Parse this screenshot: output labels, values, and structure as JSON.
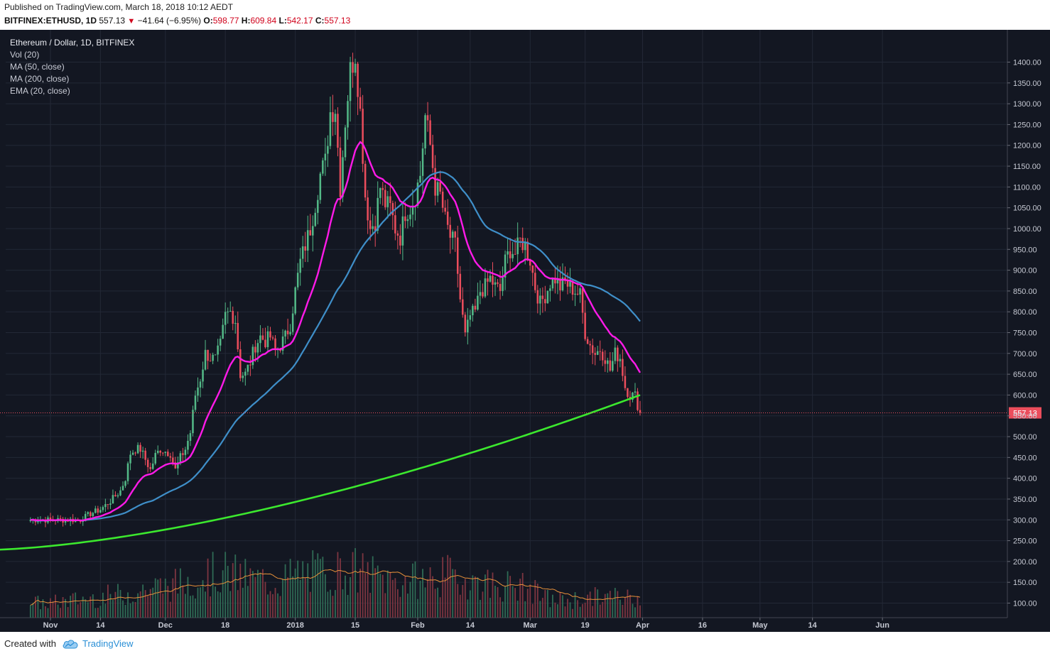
{
  "header": {
    "published": "Published on TradingView.com, March 18, 2018 10:12 AEDT",
    "symbol": "BITFINEX:ETHUSD, 1D",
    "last": "557.13",
    "change": "−41.64 (−6.95%)",
    "open_label": "O:",
    "open": "598.77",
    "high_label": "H:",
    "high": "609.84",
    "low_label": "L:",
    "low": "542.17",
    "close_label": "C:",
    "close": "557.13"
  },
  "footer": {
    "created_with": "Created with",
    "brand": "TradingView"
  },
  "colors": {
    "background": "#131722",
    "up": "#53b987",
    "down": "#eb4d5c",
    "ma50": "#3f8fc9",
    "ma200": "#3ce82e",
    "ema20": "#ff1ae8",
    "vol_ma": "#e8913a"
  },
  "chart_data": {
    "type": "candlestick",
    "title": "Ethereum / Dollar, 1D, BITFINEX",
    "indicators": [
      "Vol (20)",
      "MA (50, close)",
      "MA (200, close)",
      "EMA (20, close)"
    ],
    "price_axis": {
      "ylim": [
        65,
        1435
      ],
      "ticks": [
        100,
        150,
        200,
        250,
        300,
        350,
        400,
        450,
        500,
        550,
        600,
        650,
        700,
        750,
        800,
        850,
        900,
        950,
        1000,
        1050,
        1100,
        1150,
        1200,
        1250,
        1300,
        1350,
        1400
      ],
      "tick_labels": [
        "100.00",
        "150.00",
        "200.00",
        "250.00",
        "300.00",
        "350.00",
        "400.00",
        "450.00",
        "500.00",
        "550.00",
        "600.00",
        "650.00",
        "700.00",
        "750.00",
        "800.00",
        "850.00",
        "900.00",
        "950.00",
        "1000.00",
        "1050.00",
        "1100.00",
        "1150.00",
        "1200.00",
        "1250.00",
        "1300.00",
        "1350.00",
        "1400.00"
      ],
      "last_price_label": "557.13",
      "last_price": 557.13
    },
    "time_axis": {
      "day_range": [
        -24,
        206
      ],
      "ticks": [
        {
          "day": 0,
          "label": "Nov"
        },
        {
          "day": 20,
          "label": "14"
        },
        {
          "day": 46,
          "label": "Dec"
        },
        {
          "day": 70,
          "label": "18"
        },
        {
          "day": 98,
          "label": "2018"
        },
        {
          "day": 122,
          "label": "15"
        },
        {
          "day": 147,
          "label": "Feb"
        },
        {
          "day": 168,
          "label": "14"
        },
        {
          "day": 192,
          "label": "Mar"
        },
        {
          "day": 214,
          "label": "19"
        },
        {
          "day": 237,
          "label": "Apr"
        },
        {
          "day": 261,
          "label": "16"
        },
        {
          "day": 284,
          "label": "May"
        },
        {
          "day": 305,
          "label": "14"
        },
        {
          "day": 333,
          "label": "Jun"
        }
      ]
    },
    "close_keypoints": [
      [
        0,
        300
      ],
      [
        8,
        300
      ],
      [
        12,
        300
      ],
      [
        16,
        315
      ],
      [
        20,
        325
      ],
      [
        24,
        345
      ],
      [
        28,
        370
      ],
      [
        30,
        400
      ],
      [
        32,
        460
      ],
      [
        34,
        470
      ],
      [
        36,
        470
      ],
      [
        38,
        445
      ],
      [
        40,
        420
      ],
      [
        42,
        455
      ],
      [
        44,
        470
      ],
      [
        46,
        465
      ],
      [
        48,
        460
      ],
      [
        50,
        420
      ],
      [
        52,
        450
      ],
      [
        54,
        470
      ],
      [
        56,
        510
      ],
      [
        58,
        600
      ],
      [
        60,
        640
      ],
      [
        62,
        700
      ],
      [
        64,
        690
      ],
      [
        66,
        685
      ],
      [
        68,
        720
      ],
      [
        70,
        790
      ],
      [
        72,
        800
      ],
      [
        74,
        780
      ],
      [
        76,
        650
      ],
      [
        78,
        650
      ],
      [
        80,
        680
      ],
      [
        82,
        720
      ],
      [
        84,
        740
      ],
      [
        86,
        730
      ],
      [
        88,
        740
      ],
      [
        90,
        705
      ],
      [
        92,
        720
      ],
      [
        94,
        740
      ],
      [
        96,
        770
      ],
      [
        98,
        850
      ],
      [
        100,
        920
      ],
      [
        102,
        960
      ],
      [
        104,
        1000
      ],
      [
        106,
        1060
      ],
      [
        108,
        1130
      ],
      [
        110,
        1160
      ],
      [
        112,
        1280
      ],
      [
        114,
        1290
      ],
      [
        116,
        1100
      ],
      [
        118,
        1260
      ],
      [
        120,
        1380
      ],
      [
        122,
        1420
      ],
      [
        124,
        1280
      ],
      [
        126,
        1080
      ],
      [
        128,
        1000
      ],
      [
        130,
        1020
      ],
      [
        132,
        1100
      ],
      [
        134,
        1060
      ],
      [
        136,
        1050
      ],
      [
        138,
        1000
      ],
      [
        140,
        980
      ],
      [
        142,
        1040
      ],
      [
        144,
        1050
      ],
      [
        146,
        1080
      ],
      [
        148,
        1130
      ],
      [
        150,
        1270
      ],
      [
        152,
        1200
      ],
      [
        154,
        1100
      ],
      [
        156,
        1080
      ],
      [
        158,
        1020
      ],
      [
        160,
        980
      ],
      [
        162,
        960
      ],
      [
        164,
        830
      ],
      [
        166,
        740
      ],
      [
        168,
        790
      ],
      [
        170,
        800
      ],
      [
        172,
        850
      ],
      [
        174,
        860
      ],
      [
        176,
        880
      ],
      [
        178,
        860
      ],
      [
        180,
        850
      ],
      [
        182,
        920
      ],
      [
        184,
        950
      ],
      [
        186,
        940
      ],
      [
        188,
        970
      ],
      [
        190,
        960
      ],
      [
        192,
        925
      ],
      [
        194,
        860
      ],
      [
        196,
        820
      ],
      [
        198,
        840
      ],
      [
        200,
        870
      ],
      [
        202,
        880
      ],
      [
        204,
        860
      ],
      [
        206,
        870
      ],
      [
        208,
        860
      ],
      [
        210,
        850
      ],
      [
        212,
        840
      ],
      [
        214,
        750
      ],
      [
        216,
        720
      ],
      [
        218,
        700
      ],
      [
        220,
        710
      ],
      [
        222,
        690
      ],
      [
        224,
        660
      ],
      [
        226,
        700
      ],
      [
        228,
        690
      ],
      [
        230,
        620
      ],
      [
        232,
        600
      ],
      [
        234,
        598
      ],
      [
        236,
        557
      ]
    ],
    "volume_keypoints": [
      [
        0,
        0.1
      ],
      [
        10,
        0.12
      ],
      [
        20,
        0.14
      ],
      [
        30,
        0.16
      ],
      [
        40,
        0.2
      ],
      [
        50,
        0.22
      ],
      [
        60,
        0.28
      ],
      [
        70,
        0.3
      ],
      [
        80,
        0.26
      ],
      [
        90,
        0.24
      ],
      [
        100,
        0.3
      ],
      [
        110,
        0.3
      ],
      [
        120,
        0.32
      ],
      [
        130,
        0.28
      ],
      [
        140,
        0.24
      ],
      [
        150,
        0.26
      ],
      [
        160,
        0.28
      ],
      [
        170,
        0.24
      ],
      [
        180,
        0.22
      ],
      [
        190,
        0.2
      ],
      [
        200,
        0.12
      ],
      [
        210,
        0.12
      ],
      [
        220,
        0.14
      ],
      [
        230,
        0.14
      ],
      [
        236,
        0.14
      ]
    ]
  }
}
